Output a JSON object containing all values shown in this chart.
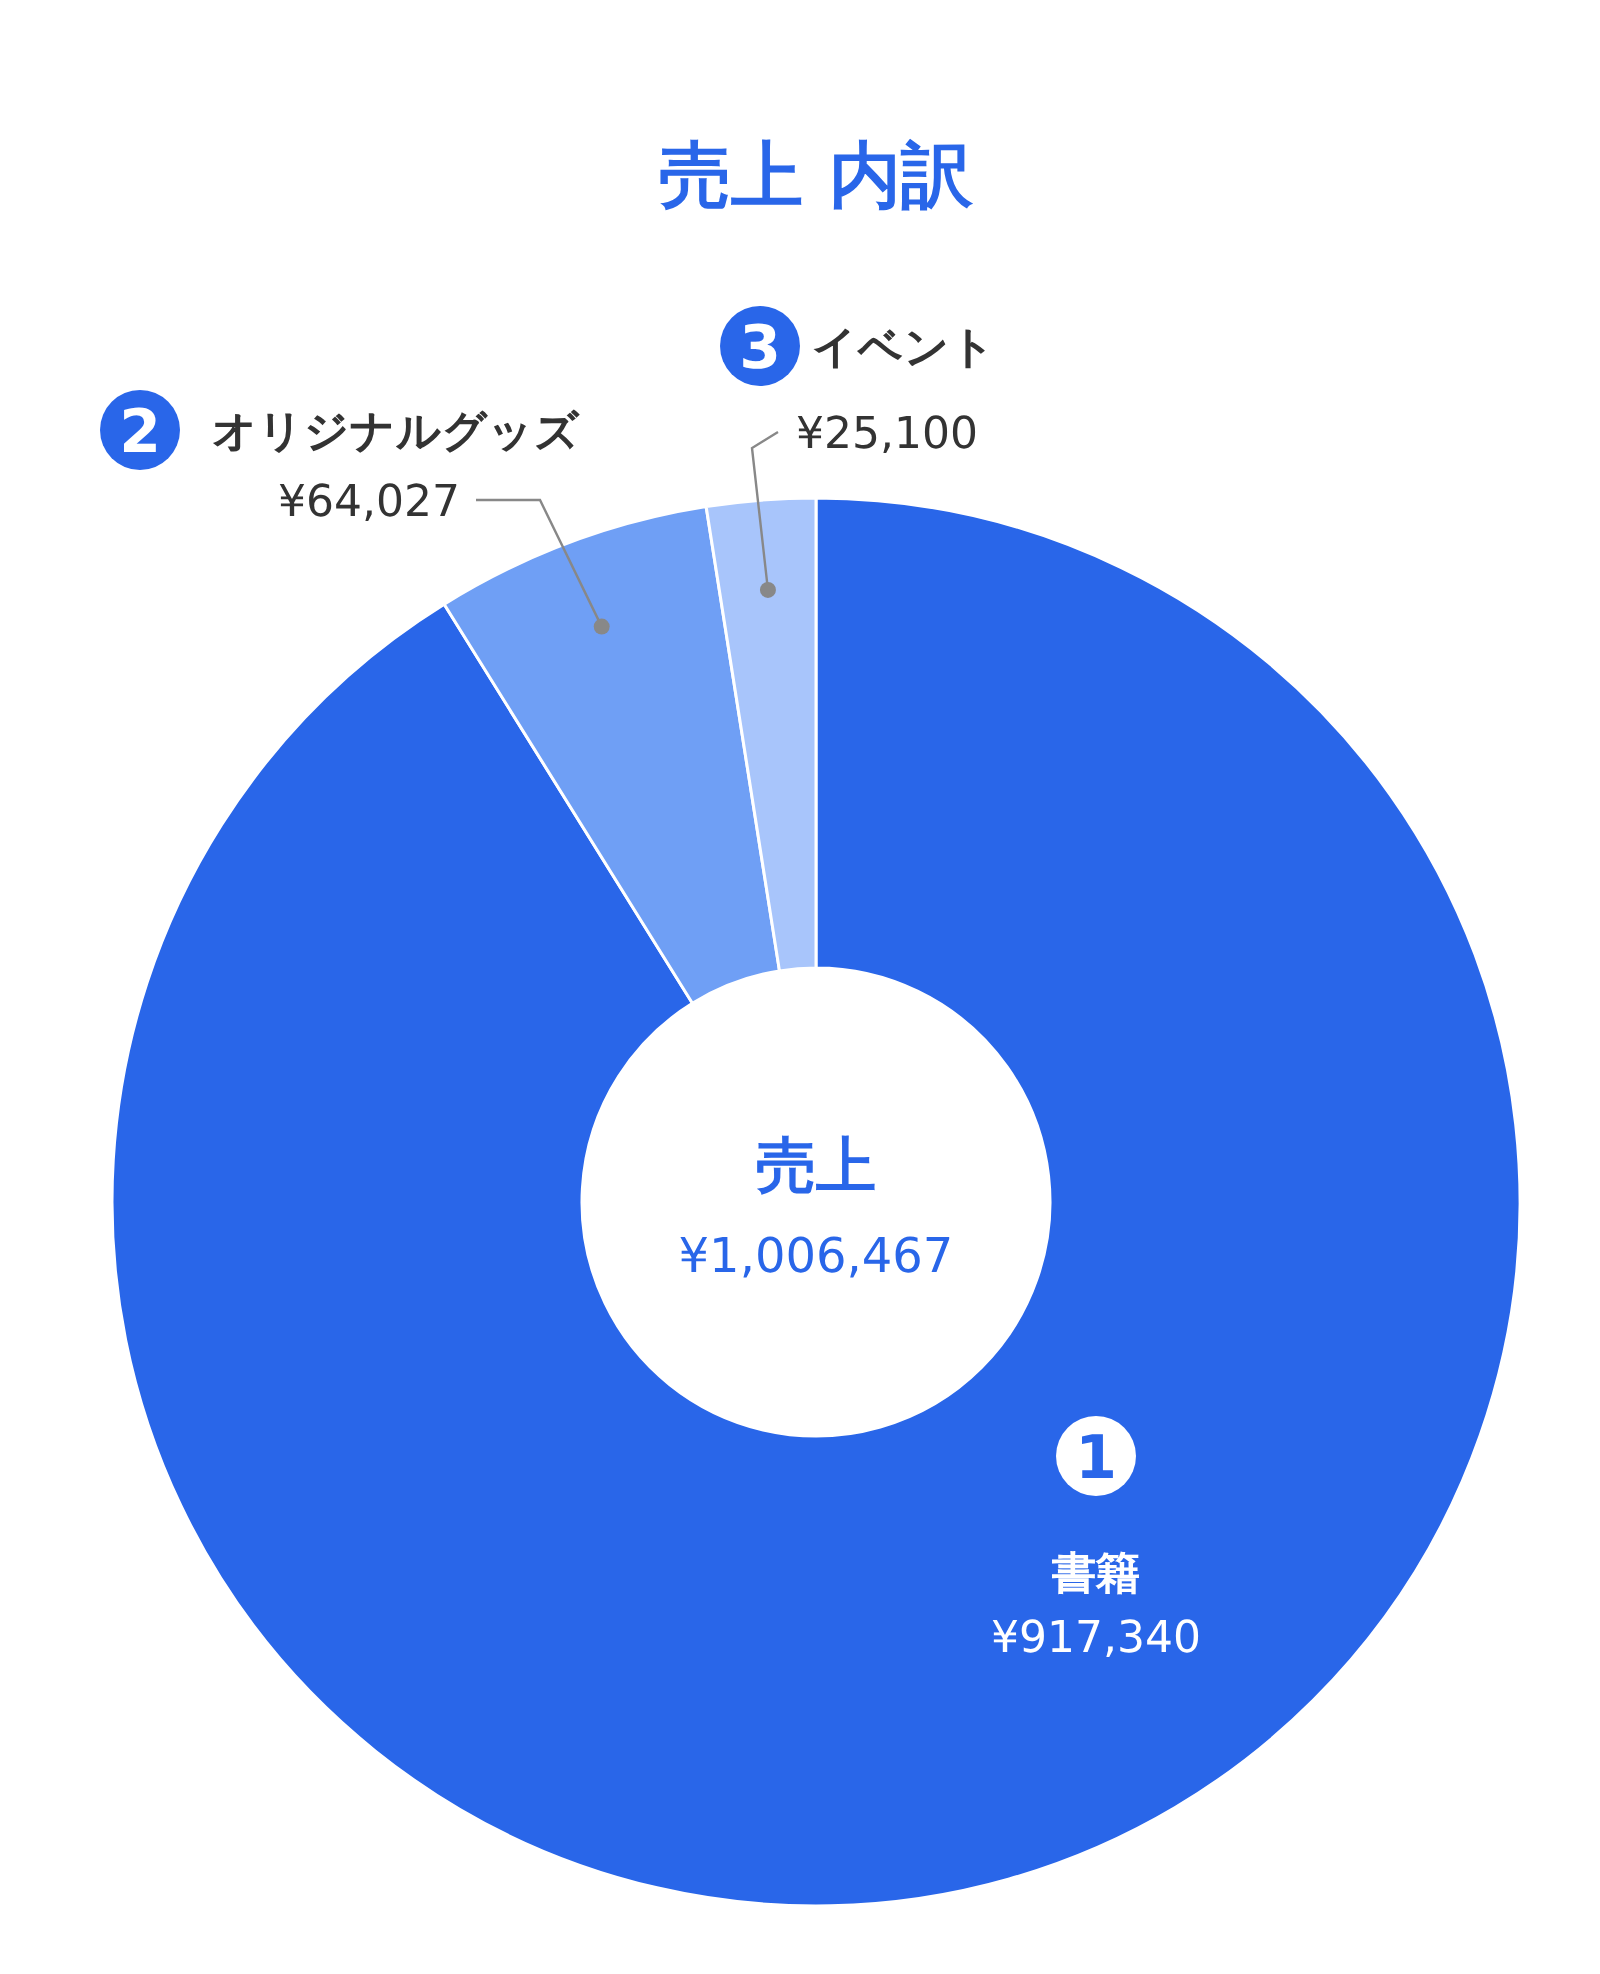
{
  "chart_data": {
    "type": "donut",
    "title": "売上 内訳",
    "categories": [
      "書籍",
      "オリジナルグッズ",
      "イベント"
    ],
    "values": [
      917340,
      64027,
      25100
    ],
    "colors": [
      "#2966e9",
      "#6f9ff5",
      "#a8c5fb"
    ],
    "value_labels": [
      "¥917,340",
      "¥64,027",
      "¥25,100"
    ],
    "annotations": [
      "売上",
      "¥1,006,467",
      "1",
      "2",
      "3"
    ]
  }
}
